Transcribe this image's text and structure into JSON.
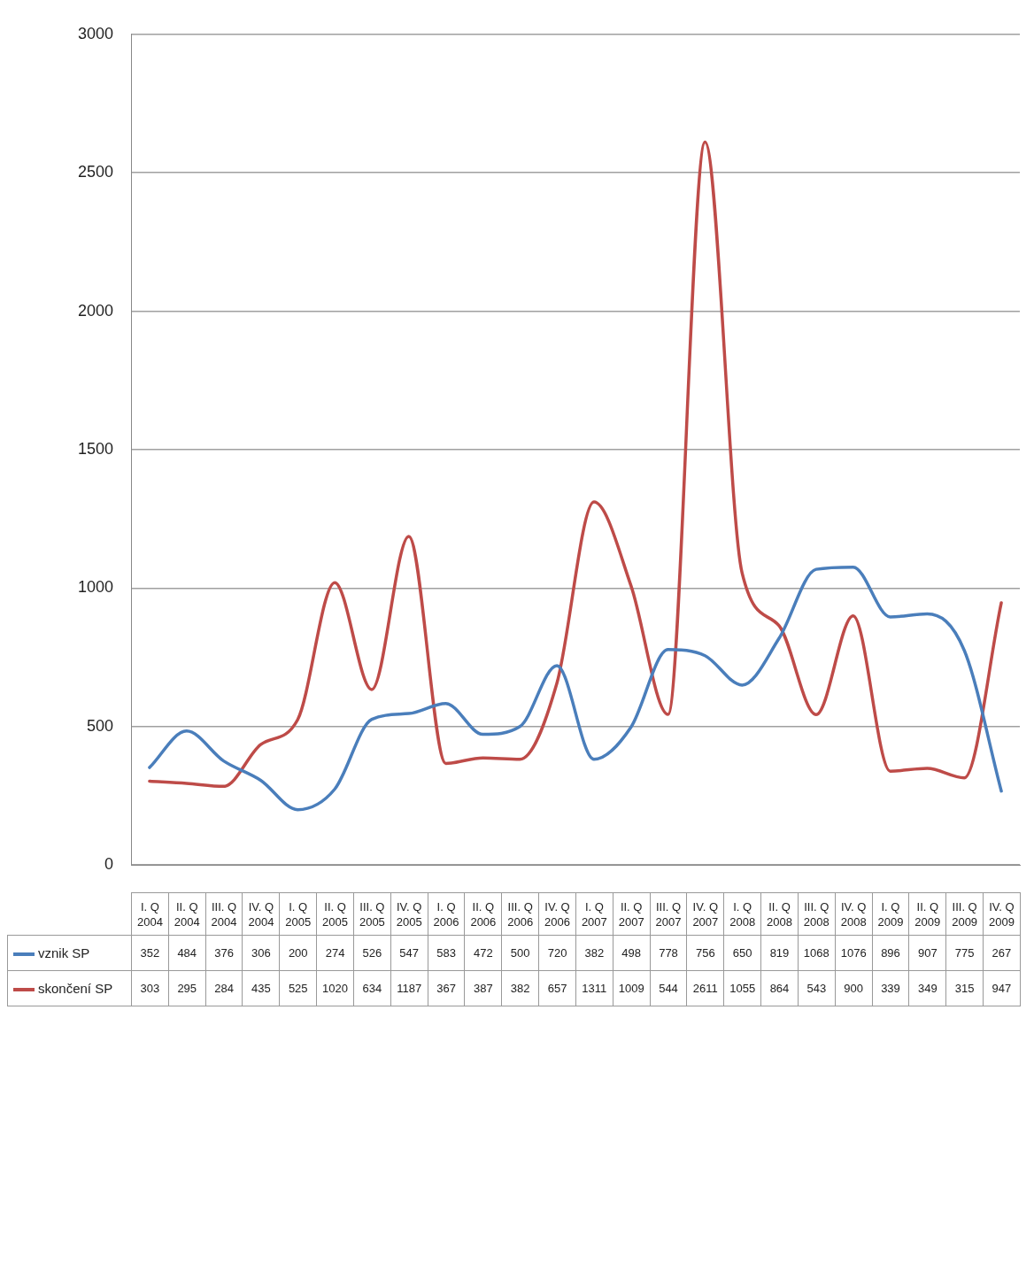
{
  "chart_data": {
    "type": "line",
    "categories": [
      "I. Q 2004",
      "II. Q 2004",
      "III. Q 2004",
      "IV. Q 2004",
      "I. Q 2005",
      "II. Q 2005",
      "III. Q 2005",
      "IV. Q 2005",
      "I. Q 2006",
      "II. Q 2006",
      "III. Q 2006",
      "IV. Q 2006",
      "I. Q 2007",
      "II. Q 2007",
      "III. Q 2007",
      "IV. Q 2007",
      "I. Q 2008",
      "II. Q 2008",
      "III. Q 2008",
      "IV. Q 2008",
      "I. Q 2009",
      "II. Q 2009",
      "III. Q 2009",
      "IV. Q 2009"
    ],
    "series": [
      {
        "name": "vznik SP",
        "color": "#4a7ebb",
        "values": [
          352,
          484,
          376,
          306,
          200,
          274,
          526,
          547,
          583,
          472,
          500,
          720,
          382,
          498,
          778,
          756,
          650,
          819,
          1068,
          1076,
          896,
          907,
          775,
          267
        ]
      },
      {
        "name": "skončení SP",
        "color": "#be4b48",
        "values": [
          303,
          295,
          284,
          435,
          525,
          1020,
          634,
          1187,
          367,
          387,
          382,
          657,
          1311,
          1009,
          544,
          2611,
          1055,
          864,
          543,
          900,
          339,
          349,
          315,
          947
        ]
      }
    ],
    "ylim": [
      0,
      3000
    ],
    "yticks": [
      0,
      500,
      1000,
      1500,
      2000,
      2500,
      3000
    ],
    "grid": "y",
    "legend": "bottom",
    "data_labels": true,
    "marker": "none"
  }
}
